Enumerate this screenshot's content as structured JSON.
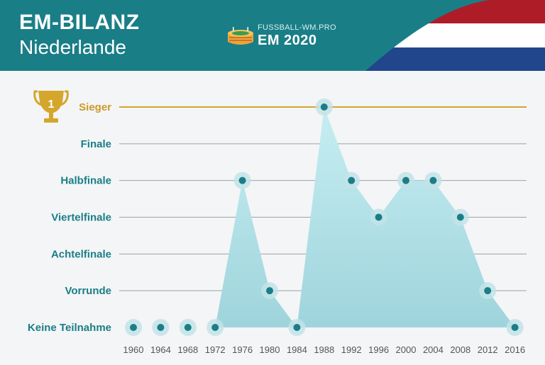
{
  "header": {
    "title": "EM-BILANZ",
    "subtitle": "Niederlande",
    "logo_small": "FUSSBALL-WM.PRO",
    "logo_big": "EM 2020"
  },
  "colors": {
    "header_bg": "#1a7e87",
    "accent": "#1a7e87",
    "winner_line": "#d4a62c",
    "area_fill": "#a9dde4",
    "flag_red": "#ae1c28",
    "flag_white": "#ffffff",
    "flag_blue": "#21468b"
  },
  "icons": {
    "logo": "stadium-icon",
    "winner": "trophy-icon",
    "flag": "netherlands-flag"
  },
  "chart_data": {
    "type": "area",
    "title": "EM-BILANZ",
    "subtitle": "Niederlande",
    "xlabel": "",
    "ylabel": "",
    "categories": [
      "1960",
      "1964",
      "1968",
      "1972",
      "1976",
      "1980",
      "1984",
      "1988",
      "1992",
      "1996",
      "2000",
      "2004",
      "2008",
      "2012",
      "2016"
    ],
    "levels": [
      "Keine Teilnahme",
      "Vorrunde",
      "Achtelfinale",
      "Viertelfinale",
      "Halbfinale",
      "Finale",
      "Sieger"
    ],
    "trophy_number": "1",
    "series": [
      {
        "values": [
          0,
          0,
          0,
          0,
          4,
          1,
          0,
          6,
          4,
          3,
          4,
          4,
          3,
          1,
          0
        ]
      }
    ],
    "ylim": [
      0,
      6
    ],
    "grid": true,
    "highlight_level": "Sieger"
  }
}
